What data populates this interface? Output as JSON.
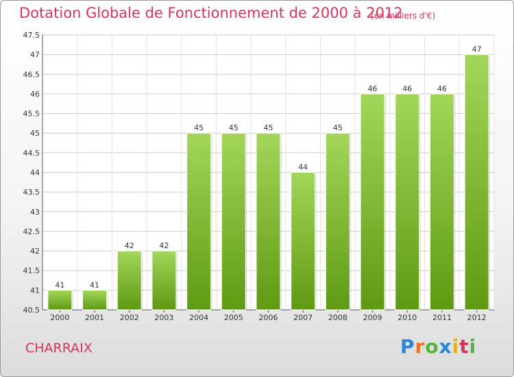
{
  "header": {
    "title": "Dotation Globale de Fonctionnement de 2000 à 2012",
    "unit": "(en milliers d'€)"
  },
  "footer": {
    "place": "CHARRAIX",
    "logo": [
      "P",
      "r",
      "o",
      "x",
      "i",
      "t",
      "i"
    ]
  },
  "colors": {
    "title": "#d9325b",
    "bar_light": "#a3d65a",
    "bar_dark": "#5f9a12",
    "grid": "#cccccc"
  },
  "chart_data": {
    "type": "bar",
    "title": "Dotation Globale de Fonctionnement de 2000 à 2012",
    "xlabel": "",
    "ylabel": "",
    "categories": [
      "2000",
      "2001",
      "2002",
      "2003",
      "2004",
      "2005",
      "2006",
      "2007",
      "2008",
      "2009",
      "2010",
      "2011",
      "2012"
    ],
    "values": [
      41,
      41,
      42,
      42,
      45,
      45,
      45,
      44,
      45,
      46,
      46,
      46,
      47
    ],
    "ylim": [
      40.5,
      47.5
    ],
    "yticks": [
      "40.5",
      "41",
      "41.5",
      "42",
      "42.5",
      "43",
      "43.5",
      "44",
      "44.5",
      "45",
      "45.5",
      "46",
      "46.5",
      "47",
      "47.5"
    ],
    "grid": true,
    "legend": "none"
  }
}
